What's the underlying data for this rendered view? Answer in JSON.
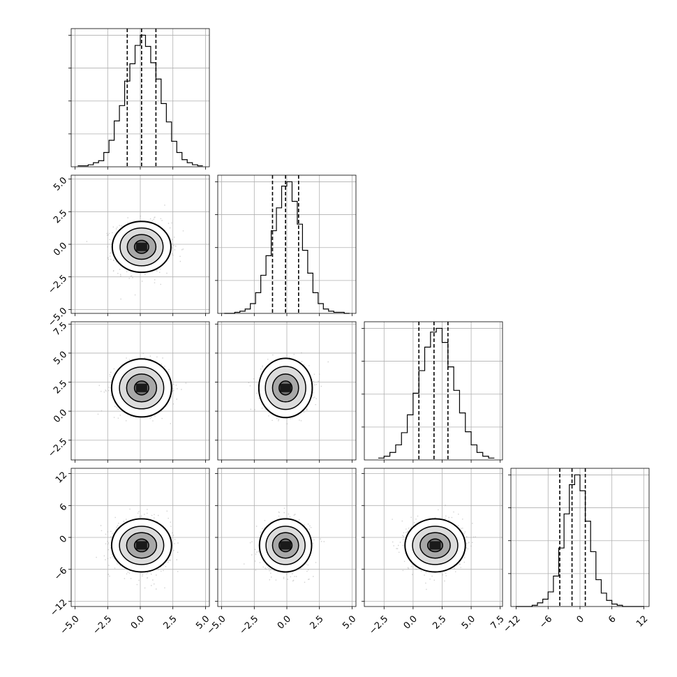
{
  "chart_data": {
    "type": "corner",
    "title": "",
    "grid": true,
    "parameters": [
      {
        "ticks": [
          -5.0,
          -2.5,
          0.0,
          2.5,
          5.0
        ],
        "tick_labels": [
          "−5.0",
          "−2.5",
          "0.0",
          "2.5",
          "5.0"
        ],
        "range": [
          -5.3,
          5.3
        ]
      },
      {
        "ticks": [
          -5.0,
          -2.5,
          0.0,
          2.5,
          5.0
        ],
        "tick_labels": [
          "−5.0",
          "−2.5",
          "0.0",
          "2.5",
          "5.0"
        ],
        "range": [
          -5.3,
          5.3
        ]
      },
      {
        "ticks": [
          -2.5,
          0.0,
          2.5,
          5.0,
          7.5
        ],
        "tick_labels": [
          "−2.5",
          "0.0",
          "2.5",
          "5.0",
          "7.5"
        ],
        "range": [
          -4.2,
          7.7
        ]
      },
      {
        "ticks": [
          -12,
          -6,
          0,
          6,
          12
        ],
        "tick_labels": [
          "−12",
          "−6",
          "0",
          "6",
          "12"
        ],
        "range": [
          -13,
          13
        ]
      }
    ],
    "histograms": [
      {
        "quantiles": [
          -1.0,
          0.1,
          1.2
        ],
        "bin_edges": [
          -4.8,
          -4.4,
          -4.0,
          -3.6,
          -3.2,
          -2.8,
          -2.4,
          -2.0,
          -1.6,
          -1.2,
          -0.8,
          -0.4,
          0.0,
          0.4,
          0.8,
          1.2,
          1.6,
          2.0,
          2.4,
          2.8,
          3.2,
          3.6,
          4.0,
          4.4,
          4.8
        ],
        "counts": [
          1,
          1,
          2,
          4,
          6,
          14,
          26,
          45,
          60,
          84,
          101,
          119,
          129,
          118,
          102,
          86,
          62,
          44,
          25,
          14,
          7,
          4,
          2,
          1
        ]
      },
      {
        "quantiles": [
          -1.1,
          -0.1,
          0.9
        ],
        "bin_edges": [
          -4.8,
          -4.4,
          -4.0,
          -3.6,
          -3.2,
          -2.8,
          -2.4,
          -2.0,
          -1.6,
          -1.2,
          -0.8,
          -0.4,
          0.0,
          0.4,
          0.8,
          1.2,
          1.6,
          2.0,
          2.4,
          2.8,
          3.2,
          3.6,
          4.0,
          4.4,
          4.8
        ],
        "counts": [
          0,
          0,
          1,
          2,
          4,
          9,
          19,
          35,
          53,
          76,
          97,
          117,
          121,
          103,
          82,
          58,
          37,
          19,
          9,
          4,
          2,
          1,
          1,
          0
        ]
      },
      {
        "quantiles": [
          0.5,
          1.8,
          3.0
        ],
        "bin_edges": [
          -3.0,
          -2.5,
          -2.0,
          -1.5,
          -1.0,
          -0.5,
          0.0,
          0.5,
          1.0,
          1.5,
          2.0,
          2.5,
          3.0,
          3.5,
          4.0,
          4.5,
          5.0,
          5.5,
          6.0,
          6.5,
          7.0
        ],
        "counts": [
          2,
          4,
          8,
          16,
          29,
          48,
          71,
          95,
          120,
          136,
          140,
          125,
          99,
          74,
          50,
          30,
          16,
          8,
          4,
          2
        ]
      },
      {
        "quantiles": [
          -3.8,
          -1.5,
          1.0
        ],
        "bin_edges": [
          -12,
          -11,
          -10,
          -9,
          -8,
          -7,
          -6,
          -5,
          -4,
          -3,
          -2,
          -1,
          0,
          1,
          2,
          3,
          4,
          5,
          6,
          7,
          8,
          9,
          10,
          11,
          12
        ],
        "counts": [
          0,
          0,
          0,
          1,
          3,
          6,
          12,
          25,
          48,
          76,
          100,
          108,
          95,
          70,
          45,
          22,
          11,
          5,
          2,
          1,
          0,
          0,
          0,
          0
        ]
      }
    ],
    "pairs": [
      {
        "row": 1,
        "col": 0,
        "center": [
          0.1,
          -0.2
        ],
        "sigma": [
          1.0,
          0.9
        ],
        "contours": [
          [
            0.55,
            0.5
          ],
          [
            1.1,
            0.95
          ],
          [
            1.65,
            1.45
          ],
          [
            2.25,
            1.95
          ]
        ]
      },
      {
        "row": 2,
        "col": 0,
        "center": [
          0.1,
          2.0
        ],
        "sigma": [
          1.0,
          1.0
        ],
        "contours": [
          [
            0.55,
            0.6
          ],
          [
            1.15,
            1.2
          ],
          [
            1.7,
            1.8
          ],
          [
            2.3,
            2.5
          ]
        ]
      },
      {
        "row": 2,
        "col": 1,
        "center": [
          -0.1,
          2.0
        ],
        "sigma": [
          0.85,
          1.0
        ],
        "contours": [
          [
            0.5,
            0.6
          ],
          [
            1.0,
            1.2
          ],
          [
            1.55,
            1.85
          ],
          [
            2.05,
            2.55
          ]
        ]
      },
      {
        "row": 3,
        "col": 0,
        "center": [
          0.1,
          -1.5
        ],
        "sigma": [
          1.0,
          2.2
        ],
        "contours": [
          [
            0.55,
            1.2
          ],
          [
            1.15,
            2.4
          ],
          [
            1.7,
            3.6
          ],
          [
            2.3,
            5.0
          ]
        ]
      },
      {
        "row": 3,
        "col": 1,
        "center": [
          -0.1,
          -1.5
        ],
        "sigma": [
          0.85,
          2.2
        ],
        "contours": [
          [
            0.5,
            1.2
          ],
          [
            1.0,
            2.4
          ],
          [
            1.5,
            3.6
          ],
          [
            2.0,
            5.0
          ]
        ]
      },
      {
        "row": 3,
        "col": 2,
        "center": [
          1.9,
          -1.5
        ],
        "sigma": [
          1.1,
          2.2
        ],
        "contours": [
          [
            0.65,
            1.2
          ],
          [
            1.3,
            2.4
          ],
          [
            1.95,
            3.6
          ],
          [
            2.6,
            5.0
          ]
        ]
      }
    ]
  }
}
